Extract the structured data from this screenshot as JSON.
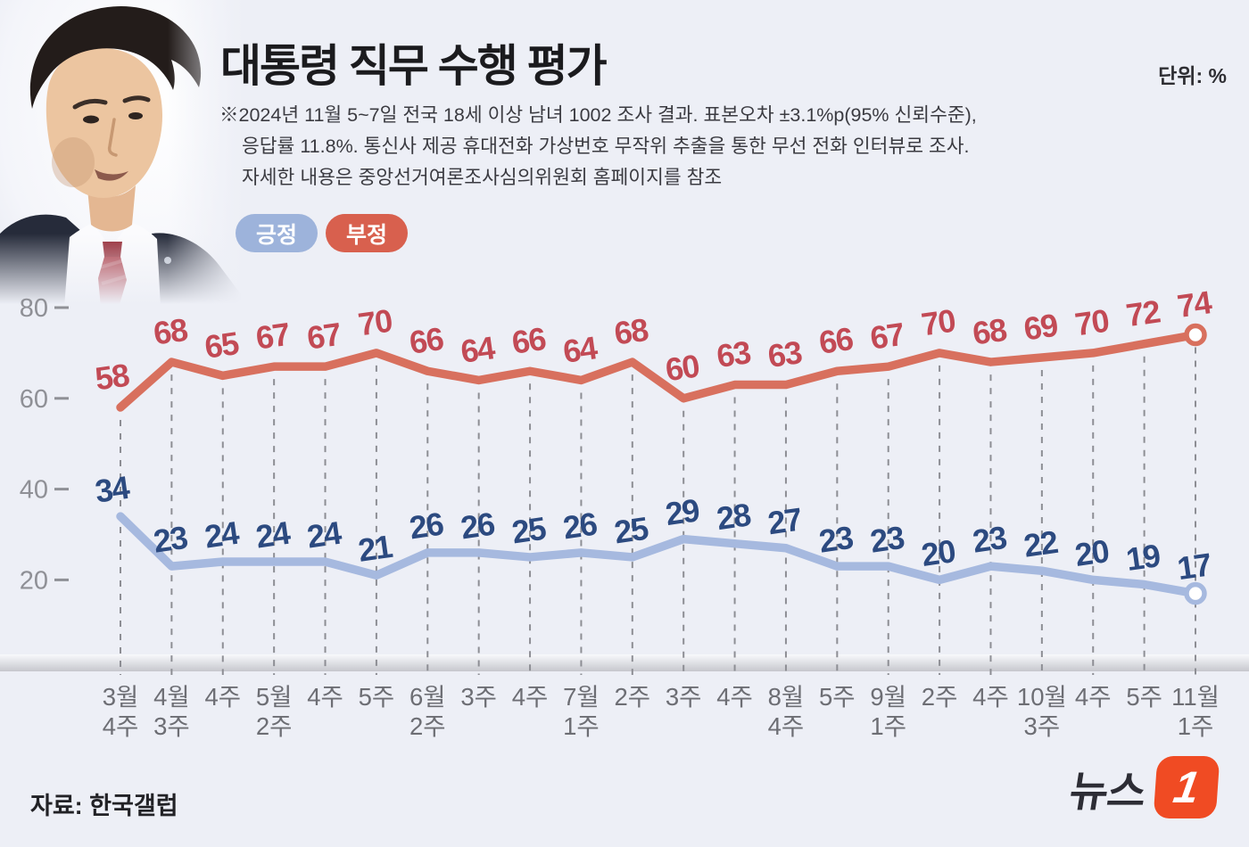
{
  "header": {
    "title": "대통령 직무 수행 평가",
    "unit_label": "단위: %",
    "note_lines": [
      "※2024년 11월 5~7일 전국 18세 이상 남녀 1002 조사 결과. 표본오차 ±3.1%p(95% 신뢰수준),",
      "응답률 11.8%. 통신사 제공 휴대전화 가상번호 무작위 추출을 통한 무선 전화 인터뷰로 조사.",
      "자세한 내용은 중앙선거여론조사심의위원회 홈페이지를 참조"
    ]
  },
  "legend": {
    "positive_label": "긍정",
    "negative_label": "부정",
    "positive_color": "#9db3db",
    "negative_color": "#d8604e"
  },
  "chart_data": {
    "type": "line",
    "title": "대통령 직무 수행 평가",
    "unit": "%",
    "ylim": [
      10,
      85
    ],
    "y_ticks": [
      80,
      60,
      40,
      20
    ],
    "grid": "dashed vertical line per data point",
    "legend_position": "top-left under note",
    "x_tick_labels": [
      [
        "3월",
        "4주"
      ],
      [
        "4월",
        "3주"
      ],
      [
        "4주"
      ],
      [
        "5월",
        "2주"
      ],
      [
        "4주"
      ],
      [
        "5주"
      ],
      [
        "6월",
        "2주"
      ],
      [
        "3주"
      ],
      [
        "4주"
      ],
      [
        "7월",
        "1주"
      ],
      [
        "2주"
      ],
      [
        "3주"
      ],
      [
        "4주"
      ],
      [
        "8월",
        "4주"
      ],
      [
        "5주"
      ],
      [
        "9월",
        "1주"
      ],
      [
        "2주"
      ],
      [
        "4주"
      ],
      [
        "10월",
        "3주"
      ],
      [
        "4주"
      ],
      [
        "5주"
      ],
      [
        "11월",
        "1주"
      ]
    ],
    "series": [
      {
        "name": "부정",
        "color_line": "#d8705e",
        "color_label": "#c24a55",
        "values": [
          58,
          68,
          65,
          67,
          67,
          70,
          66,
          64,
          66,
          64,
          68,
          60,
          63,
          63,
          66,
          67,
          70,
          68,
          69,
          70,
          72,
          74
        ]
      },
      {
        "name": "긍정",
        "color_line": "#a6b9df",
        "color_label": "#2c4a80",
        "values": [
          34,
          23,
          24,
          24,
          24,
          21,
          26,
          26,
          25,
          26,
          25,
          29,
          28,
          27,
          23,
          23,
          20,
          23,
          22,
          20,
          19,
          17
        ]
      }
    ]
  },
  "footer": {
    "source_label": "자료: 한국갤럽",
    "logo_text": "뉴스",
    "logo_number": "1",
    "logo_color": "#f04b23"
  }
}
